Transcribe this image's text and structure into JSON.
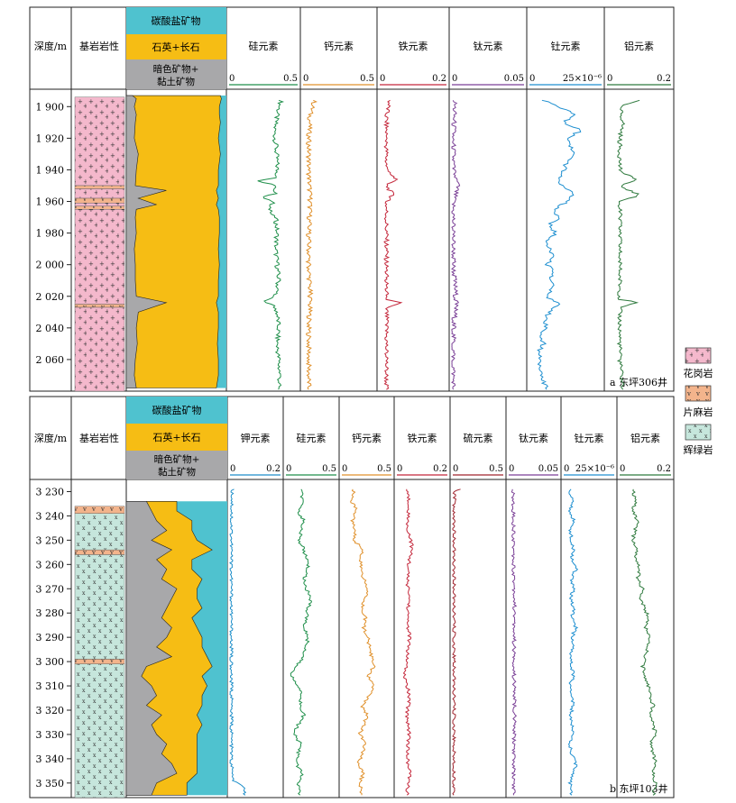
{
  "legend": {
    "items": [
      {
        "label": "花岗岩",
        "pattern": "granite",
        "color": "#f4b8cc"
      },
      {
        "label": "片麻岩",
        "pattern": "gneiss",
        "color": "#f3b48c"
      },
      {
        "label": "辉绿岩",
        "pattern": "diabase",
        "color": "#c6e6dc"
      }
    ]
  },
  "chart_data": [
    {
      "type": "well-log",
      "well_label": "a 东坪306井",
      "depth_header": "深度/m",
      "lithology_header": "基岩岩性",
      "mineral_headers": [
        "碳酸盐矿物",
        "石英+长石",
        "暗色矿物+黏土矿物"
      ],
      "depth_range": [
        1889,
        2080
      ],
      "depth_ticks": [
        "1 900",
        "1 920",
        "1 940",
        "1 960",
        "1 980",
        "2 000",
        "2 020",
        "2 040",
        "2 060"
      ],
      "depth_tick_values": [
        1900,
        1920,
        1940,
        1960,
        1980,
        2000,
        2020,
        2040,
        2060
      ],
      "lithology": [
        {
          "rock": "granite",
          "from": 1894,
          "to": 1950
        },
        {
          "rock": "gneiss",
          "from": 1950,
          "to": 1952
        },
        {
          "rock": "granite",
          "from": 1952,
          "to": 1958
        },
        {
          "rock": "gneiss",
          "from": 1958,
          "to": 1961
        },
        {
          "rock": "granite",
          "from": 1961,
          "to": 1963
        },
        {
          "rock": "gneiss",
          "from": 1963,
          "to": 1965
        },
        {
          "rock": "granite",
          "from": 1965,
          "to": 2025
        },
        {
          "rock": "gneiss",
          "from": 2025,
          "to": 2027
        },
        {
          "rock": "granite",
          "from": 2027,
          "to": 2080
        }
      ],
      "minerals": {
        "depth": [
          1893,
          1895,
          1900,
          1905,
          1910,
          1920,
          1930,
          1940,
          1950,
          1953,
          1958,
          1962,
          1965,
          1970,
          1980,
          1990,
          2000,
          2010,
          2020,
          2024,
          2030,
          2040,
          2050,
          2060,
          2070,
          2078
        ],
        "dark_clay_pct": [
          6,
          10,
          8,
          10,
          9,
          8,
          12,
          10,
          9,
          40,
          12,
          30,
          10,
          9,
          10,
          8,
          9,
          9,
          10,
          40,
          12,
          10,
          11,
          9,
          8,
          10
        ],
        "quartz_feldspar_pct": [
          88,
          85,
          85,
          83,
          85,
          84,
          82,
          82,
          83,
          50,
          80,
          60,
          82,
          84,
          83,
          84,
          84,
          83,
          82,
          50,
          80,
          82,
          80,
          83,
          84,
          80
        ]
      },
      "tracks": [
        {
          "label": "硅元素",
          "scale_min": "0",
          "scale_max": "0.5",
          "max": 0.5,
          "color": "#1f8f4a",
          "depth": [
            1896,
            1905,
            1915,
            1925,
            1935,
            1945,
            1947,
            1950,
            1955,
            1957,
            1960,
            1965,
            1970,
            1980,
            1990,
            2000,
            2010,
            2020,
            2023,
            2026,
            2030,
            2040,
            2050,
            2060,
            2070,
            2079
          ],
          "values": [
            0.38,
            0.35,
            0.33,
            0.34,
            0.35,
            0.35,
            0.22,
            0.34,
            0.34,
            0.24,
            0.32,
            0.3,
            0.34,
            0.35,
            0.34,
            0.35,
            0.36,
            0.34,
            0.24,
            0.33,
            0.35,
            0.36,
            0.35,
            0.36,
            0.37,
            0.36
          ]
        },
        {
          "label": "钙元素",
          "scale_min": "0",
          "scale_max": "0.5",
          "max": 0.5,
          "color": "#e0902a",
          "depth": [
            1896,
            1905,
            1920,
            1940,
            1960,
            1980,
            2000,
            2020,
            2040,
            2060,
            2079
          ],
          "values": [
            0.08,
            0.05,
            0.04,
            0.04,
            0.05,
            0.04,
            0.04,
            0.05,
            0.04,
            0.04,
            0.04
          ]
        },
        {
          "label": "铁元素",
          "scale_min": "0",
          "scale_max": "0.2",
          "max": 0.2,
          "color": "#c4263a",
          "depth": [
            1896,
            1905,
            1920,
            1940,
            1946,
            1950,
            1956,
            1960,
            1970,
            1990,
            2010,
            2022,
            2024,
            2027,
            2040,
            2060,
            2079
          ],
          "values": [
            0.03,
            0.02,
            0.02,
            0.02,
            0.05,
            0.02,
            0.04,
            0.02,
            0.02,
            0.02,
            0.02,
            0.02,
            0.06,
            0.02,
            0.02,
            0.02,
            0.02
          ]
        },
        {
          "label": "钛元素",
          "scale_min": "0",
          "scale_max": "0.05",
          "max": 0.05,
          "color": "#7a3f96",
          "depth": [
            1896,
            1920,
            1940,
            1950,
            1960,
            1980,
            2000,
            2024,
            2040,
            2060,
            2079
          ],
          "values": [
            0.002,
            0.001,
            0.001,
            0.004,
            0.001,
            0.001,
            0.001,
            0.003,
            0.001,
            0.001,
            0.001
          ]
        },
        {
          "label": "钍元素",
          "scale_min": "0",
          "scale_max": "25×10⁻⁶",
          "max": 25,
          "color": "#1e8fd0",
          "depth": [
            1896,
            1900,
            1905,
            1910,
            1915,
            1920,
            1925,
            1930,
            1935,
            1940,
            1945,
            1950,
            1955,
            1960,
            1965,
            1970,
            1975,
            1980,
            1985,
            1990,
            1995,
            2000,
            2005,
            2010,
            2015,
            2020,
            2025,
            2030,
            2035,
            2040,
            2045,
            2050,
            2055,
            2060,
            2065,
            2070,
            2075,
            2079
          ],
          "values": [
            5,
            10,
            16,
            12,
            18,
            13,
            14,
            15,
            13,
            12,
            10,
            11,
            15,
            13,
            9,
            10,
            7,
            9,
            6,
            7,
            8,
            6,
            9,
            7,
            8,
            6,
            10,
            7,
            5,
            6,
            3,
            5,
            3,
            4,
            3,
            4,
            5,
            6
          ]
        },
        {
          "label": "铝元素",
          "scale_min": "0",
          "scale_max": "0.2",
          "max": 0.2,
          "color": "#2f7a3e",
          "depth": [
            1896,
            1900,
            1910,
            1920,
            1940,
            1946,
            1950,
            1956,
            1960,
            1980,
            2000,
            2022,
            2024,
            2027,
            2040,
            2060,
            2079
          ],
          "values": [
            0.1,
            0.04,
            0.05,
            0.04,
            0.04,
            0.09,
            0.04,
            0.1,
            0.04,
            0.04,
            0.04,
            0.04,
            0.1,
            0.04,
            0.04,
            0.04,
            0.05
          ]
        }
      ]
    },
    {
      "type": "well-log",
      "well_label": "b 东坪103井",
      "depth_header": "深度/m",
      "lithology_header": "基岩岩性",
      "mineral_headers": [
        "碳酸盐矿物",
        "石英+长石",
        "暗色矿物+黏土矿物"
      ],
      "depth_range": [
        3225,
        3356
      ],
      "depth_ticks": [
        "3 230",
        "3 240",
        "3 250",
        "3 260",
        "3 270",
        "3 280",
        "3 290",
        "3 300",
        "3 310",
        "3 320",
        "3 330",
        "3 340",
        "3 350"
      ],
      "depth_tick_values": [
        3230,
        3240,
        3250,
        3260,
        3270,
        3280,
        3290,
        3300,
        3310,
        3320,
        3330,
        3340,
        3350
      ],
      "lithology": [
        {
          "rock": "gneiss",
          "from": 3236,
          "to": 3239
        },
        {
          "rock": "diabase",
          "from": 3239,
          "to": 3254
        },
        {
          "rock": "gneiss",
          "from": 3254,
          "to": 3256
        },
        {
          "rock": "diabase",
          "from": 3256,
          "to": 3299
        },
        {
          "rock": "gneiss",
          "from": 3299,
          "to": 3301
        },
        {
          "rock": "diabase",
          "from": 3301,
          "to": 3356
        }
      ],
      "minerals": {
        "depth": [
          3234,
          3238,
          3242,
          3246,
          3250,
          3254,
          3258,
          3262,
          3266,
          3270,
          3274,
          3278,
          3282,
          3286,
          3290,
          3294,
          3298,
          3302,
          3306,
          3310,
          3314,
          3318,
          3322,
          3326,
          3330,
          3334,
          3338,
          3342,
          3346,
          3350,
          3355
        ],
        "dark_clay_pct": [
          20,
          25,
          30,
          40,
          25,
          45,
          30,
          40,
          35,
          50,
          45,
          40,
          35,
          45,
          40,
          30,
          45,
          20,
          15,
          25,
          30,
          20,
          35,
          25,
          30,
          40,
          35,
          45,
          50,
          30,
          25
        ],
        "quartz_feldspar_pct": [
          30,
          25,
          35,
          25,
          45,
          40,
          35,
          25,
          40,
          20,
          25,
          35,
          30,
          25,
          35,
          45,
          35,
          65,
          60,
          55,
          45,
          55,
          35,
          50,
          40,
          30,
          35,
          25,
          20,
          30,
          35
        ]
      },
      "tracks": [
        {
          "label": "钾元素",
          "scale_min": "0",
          "scale_max": "0.2",
          "max": 0.2,
          "color": "#1c8ec9",
          "depth": [
            3229,
            3240,
            3260,
            3280,
            3300,
            3320,
            3340,
            3349,
            3351,
            3355
          ],
          "values": [
            0.01,
            0.006,
            0.005,
            0.005,
            0.005,
            0.006,
            0.005,
            0.01,
            0.05,
            0.06
          ]
        },
        {
          "label": "硅元素",
          "scale_min": "0",
          "scale_max": "0.5",
          "max": 0.5,
          "color": "#1f8f4a",
          "depth": [
            3229,
            3234,
            3238,
            3242,
            3246,
            3250,
            3254,
            3258,
            3262,
            3266,
            3270,
            3274,
            3278,
            3282,
            3286,
            3290,
            3294,
            3298,
            3302,
            3306,
            3310,
            3314,
            3318,
            3322,
            3326,
            3330,
            3334,
            3338,
            3342,
            3346,
            3350,
            3355
          ],
          "values": [
            0.15,
            0.16,
            0.12,
            0.18,
            0.15,
            0.13,
            0.18,
            0.2,
            0.22,
            0.18,
            0.2,
            0.25,
            0.22,
            0.2,
            0.18,
            0.22,
            0.2,
            0.17,
            0.1,
            0.05,
            0.12,
            0.16,
            0.14,
            0.18,
            0.12,
            0.08,
            0.15,
            0.12,
            0.1,
            0.16,
            0.12,
            0.14
          ]
        },
        {
          "label": "钙元素",
          "scale_min": "0",
          "scale_max": "0.5",
          "max": 0.5,
          "color": "#e0902a",
          "depth": [
            3229,
            3234,
            3238,
            3242,
            3246,
            3250,
            3254,
            3258,
            3262,
            3266,
            3270,
            3274,
            3278,
            3282,
            3286,
            3290,
            3294,
            3298,
            3302,
            3306,
            3310,
            3314,
            3318,
            3322,
            3326,
            3330,
            3334,
            3338,
            3342,
            3346,
            3350,
            3355
          ],
          "values": [
            0.12,
            0.1,
            0.15,
            0.1,
            0.14,
            0.12,
            0.22,
            0.18,
            0.2,
            0.22,
            0.26,
            0.24,
            0.2,
            0.24,
            0.22,
            0.26,
            0.28,
            0.3,
            0.32,
            0.26,
            0.32,
            0.28,
            0.2,
            0.26,
            0.22,
            0.18,
            0.24,
            0.2,
            0.17,
            0.22,
            0.18,
            0.2
          ]
        },
        {
          "label": "铁元素",
          "scale_min": "0",
          "scale_max": "0.2",
          "max": 0.2,
          "color": "#c4263a",
          "depth": [
            3229,
            3236,
            3244,
            3252,
            3258,
            3266,
            3274,
            3282,
            3290,
            3298,
            3306,
            3314,
            3322,
            3330,
            3338,
            3346,
            3355
          ],
          "values": [
            0.04,
            0.05,
            0.04,
            0.06,
            0.05,
            0.04,
            0.05,
            0.04,
            0.05,
            0.04,
            0.03,
            0.05,
            0.04,
            0.05,
            0.04,
            0.05,
            0.04
          ]
        },
        {
          "label": "硫元素",
          "scale_min": "0",
          "scale_max": "0.5",
          "max": 0.5,
          "color": "#a0242e",
          "depth": [
            3229,
            3230,
            3235,
            3260,
            3300,
            3355
          ],
          "values": [
            0.08,
            0.02,
            0.01,
            0.01,
            0.01,
            0.01
          ]
        },
        {
          "label": "钛元素",
          "scale_min": "0",
          "scale_max": "0.05",
          "max": 0.05,
          "color": "#7a3f96",
          "depth": [
            3229,
            3240,
            3260,
            3280,
            3300,
            3320,
            3340,
            3355
          ],
          "values": [
            0.004,
            0.005,
            0.005,
            0.006,
            0.005,
            0.006,
            0.005,
            0.005
          ]
        },
        {
          "label": "钍元素",
          "scale_min": "0",
          "scale_max": "25×10⁻⁶",
          "max": 25,
          "color": "#1e8fd0",
          "depth": [
            3229,
            3234,
            3238,
            3242,
            3246,
            3250,
            3254,
            3258,
            3262,
            3266,
            3270,
            3274,
            3278,
            3282,
            3286,
            3290,
            3294,
            3298,
            3302,
            3306,
            3310,
            3314,
            3318,
            3322,
            3326,
            3330,
            3334,
            3338,
            3342,
            3346,
            3350,
            3355
          ],
          "values": [
            3,
            4,
            3,
            5,
            3,
            4,
            5,
            4,
            6,
            4,
            5,
            3,
            5,
            4,
            6,
            4,
            5,
            3,
            4,
            5,
            3,
            4,
            5,
            3,
            4,
            5,
            3,
            4,
            6,
            5,
            3,
            4
          ]
        },
        {
          "label": "铝元素",
          "scale_min": "0",
          "scale_max": "0.2",
          "max": 0.2,
          "color": "#2f7a3e",
          "depth": [
            3229,
            3234,
            3238,
            3242,
            3246,
            3250,
            3254,
            3258,
            3262,
            3266,
            3270,
            3274,
            3278,
            3282,
            3286,
            3290,
            3294,
            3298,
            3302,
            3306,
            3310,
            3314,
            3318,
            3322,
            3326,
            3330,
            3334,
            3338,
            3342,
            3346,
            3350,
            3355
          ],
          "values": [
            0.05,
            0.06,
            0.05,
            0.07,
            0.06,
            0.05,
            0.07,
            0.06,
            0.08,
            0.07,
            0.09,
            0.08,
            0.1,
            0.11,
            0.1,
            0.12,
            0.11,
            0.1,
            0.09,
            0.1,
            0.11,
            0.12,
            0.13,
            0.12,
            0.13,
            0.14,
            0.12,
            0.13,
            0.14,
            0.13,
            0.14,
            0.13
          ]
        }
      ]
    }
  ]
}
